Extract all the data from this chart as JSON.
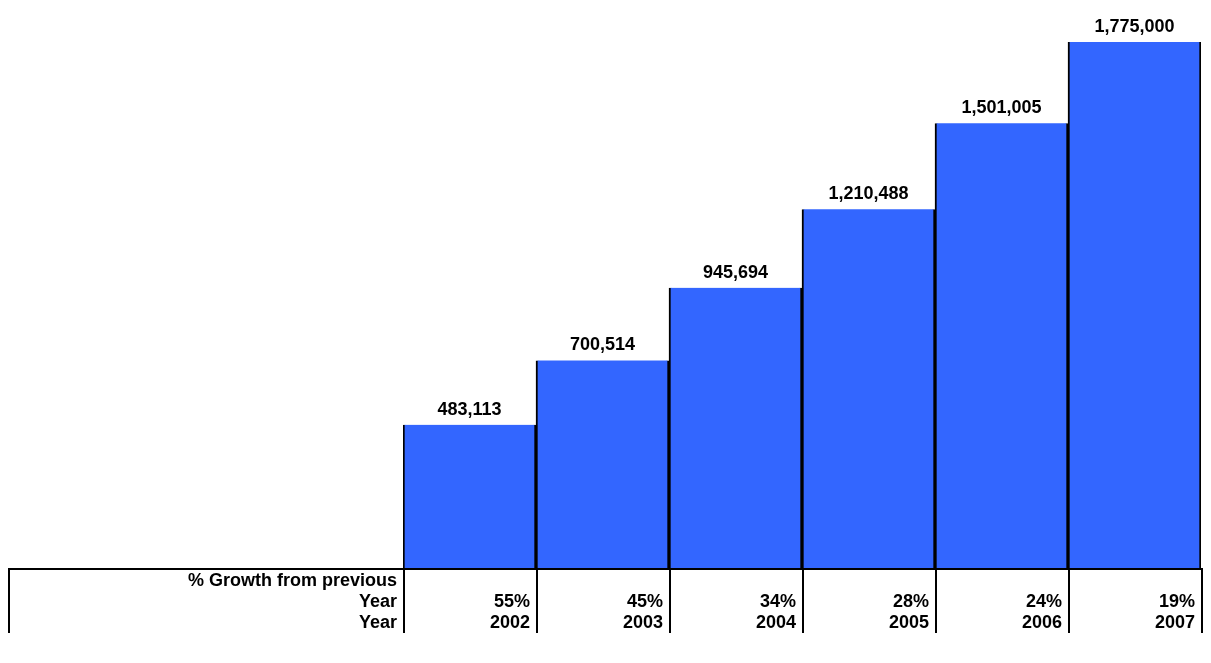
{
  "chart_data": {
    "type": "bar",
    "categories": [
      "2002",
      "2003",
      "2004",
      "2005",
      "2006",
      "2007"
    ],
    "values": [
      483113,
      700514,
      945694,
      1210488,
      1501005,
      1775000
    ],
    "color": "#3366ff",
    "value_labels": [
      "483,113",
      "700,514",
      "945,694",
      "1,210,488",
      "1,501,005",
      "1,775,000"
    ],
    "xlabel": "Year",
    "annotations": [
      "% Growth from previous Year",
      "55%",
      "45%",
      "34%",
      "28%",
      "24%",
      "19%"
    ]
  }
}
